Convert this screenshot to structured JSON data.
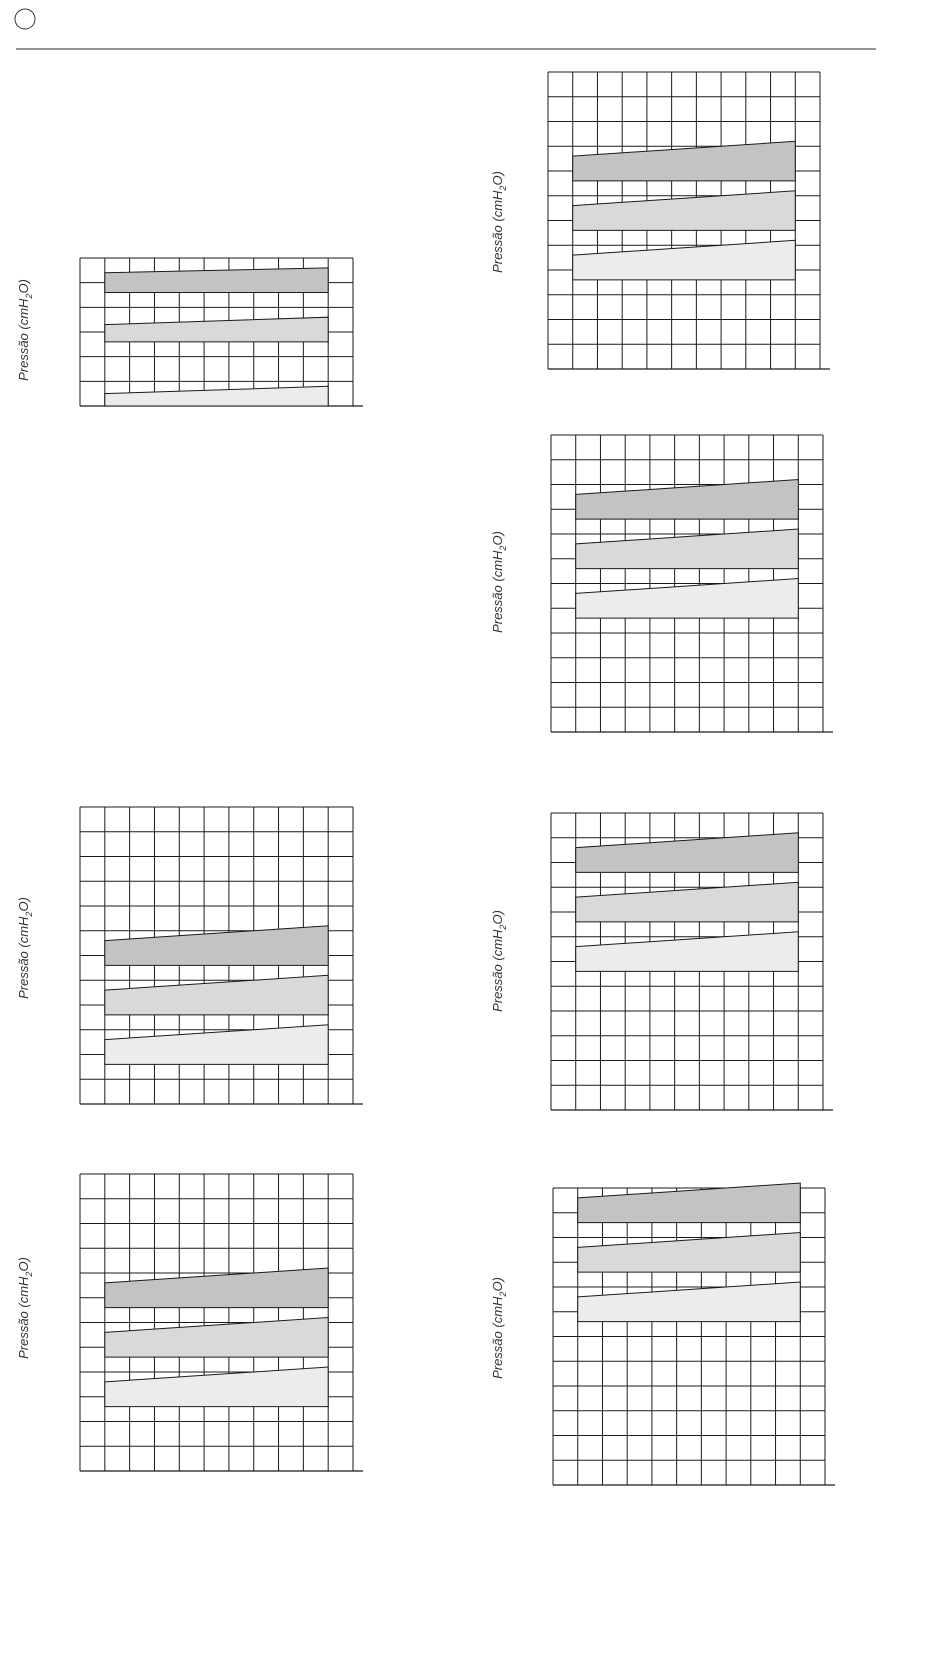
{
  "header": {
    "marker_icon": "circle-outline-icon",
    "rule_color": "#555555"
  },
  "style": {
    "grid_color": "#1a1a1a",
    "bands": [
      {
        "fill": "#c3c3c3"
      },
      {
        "fill": "#d9d9d9"
      },
      {
        "fill": "#ececec"
      }
    ]
  },
  "chart_data": [
    {
      "type": "area",
      "ylabel": {
        "main": "Pressão (cmH",
        "sub": "2",
        "end": "O)"
      },
      "grid": true,
      "rows": 6,
      "cols": 11,
      "series": [
        {
          "start": [
            4.6,
            5.4
          ],
          "end": [
            4.6,
            5.6
          ]
        },
        {
          "start": [
            2.6,
            3.3
          ],
          "end": [
            2.6,
            3.6
          ]
        },
        {
          "start": [
            0.0,
            0.5
          ],
          "end": [
            0.0,
            0.8
          ]
        }
      ]
    },
    {
      "type": "area",
      "ylabel": {
        "main": "Pressão (cmH",
        "sub": "2",
        "end": "O)"
      },
      "grid": true,
      "rows": 12,
      "cols": 11,
      "series": [
        {
          "start": [
            7.6,
            8.6
          ],
          "end": [
            7.6,
            9.2
          ]
        },
        {
          "start": [
            5.6,
            6.6
          ],
          "end": [
            5.6,
            7.2
          ]
        },
        {
          "start": [
            3.6,
            4.6
          ],
          "end": [
            3.6,
            5.2
          ]
        }
      ]
    },
    {
      "type": "area",
      "ylabel": {
        "main": "Pressão (cmH",
        "sub": "2",
        "end": "O)"
      },
      "grid": true,
      "rows": 12,
      "cols": 11,
      "series": [
        {
          "start": [
            8.6,
            9.6
          ],
          "end": [
            8.6,
            10.2
          ]
        },
        {
          "start": [
            6.6,
            7.6
          ],
          "end": [
            6.6,
            8.2
          ]
        },
        {
          "start": [
            4.6,
            5.6
          ],
          "end": [
            4.6,
            6.2
          ]
        }
      ]
    },
    {
      "type": "area",
      "ylabel": {
        "main": "Pressão (cmH",
        "sub": "2",
        "end": "O)"
      },
      "grid": true,
      "rows": 12,
      "cols": 11,
      "series": [
        {
          "start": [
            5.6,
            6.6
          ],
          "end": [
            5.6,
            7.2
          ]
        },
        {
          "start": [
            3.6,
            4.6
          ],
          "end": [
            3.6,
            5.2
          ]
        },
        {
          "start": [
            1.6,
            2.6
          ],
          "end": [
            1.6,
            3.2
          ]
        }
      ]
    },
    {
      "type": "area",
      "ylabel": {
        "main": "Pressão (cmH",
        "sub": "2",
        "end": "O)"
      },
      "grid": true,
      "rows": 12,
      "cols": 11,
      "series": [
        {
          "start": [
            9.6,
            10.6
          ],
          "end": [
            9.6,
            11.2
          ]
        },
        {
          "start": [
            7.6,
            8.6
          ],
          "end": [
            7.6,
            9.2
          ]
        },
        {
          "start": [
            5.6,
            6.6
          ],
          "end": [
            5.6,
            7.2
          ]
        }
      ]
    },
    {
      "type": "area",
      "ylabel": {
        "main": "Pressão (cmH",
        "sub": "2",
        "end": "O)"
      },
      "grid": true,
      "rows": 12,
      "cols": 11,
      "series": [
        {
          "start": [
            6.6,
            7.6
          ],
          "end": [
            6.6,
            8.2
          ]
        },
        {
          "start": [
            4.6,
            5.6
          ],
          "end": [
            4.6,
            6.2
          ]
        },
        {
          "start": [
            2.6,
            3.6
          ],
          "end": [
            2.6,
            4.2
          ]
        }
      ]
    },
    {
      "type": "area",
      "ylabel": {
        "main": "Pressão (cmH",
        "sub": "2",
        "end": "O)"
      },
      "grid": true,
      "rows": 12,
      "cols": 11,
      "series": [
        {
          "start": [
            10.6,
            11.6
          ],
          "end": [
            10.6,
            12.2
          ]
        },
        {
          "start": [
            8.6,
            9.6
          ],
          "end": [
            8.6,
            10.2
          ]
        },
        {
          "start": [
            6.6,
            7.6
          ],
          "end": [
            6.6,
            8.2
          ]
        }
      ]
    }
  ]
}
